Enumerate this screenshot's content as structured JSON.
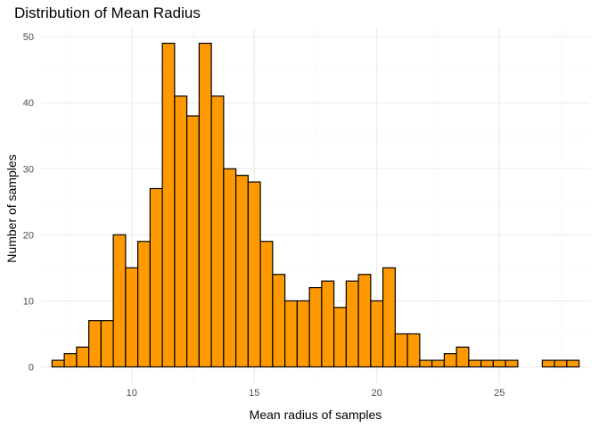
{
  "chart_data": {
    "type": "bar",
    "title": "Distribution of Mean Radius",
    "xlabel": "Mean radius of samples",
    "ylabel": "Number of samples",
    "bin_width": 0.5,
    "first_bin_center": 7.0,
    "values": [
      1,
      2,
      3,
      7,
      7,
      20,
      15,
      19,
      27,
      49,
      41,
      38,
      49,
      41,
      30,
      29,
      28,
      19,
      14,
      10,
      10,
      12,
      13,
      9,
      13,
      14,
      10,
      15,
      5,
      5,
      1,
      1,
      2,
      3,
      1,
      1,
      1,
      1,
      0,
      0,
      1,
      1,
      1
    ],
    "xlim": [
      6.3,
      28.7
    ],
    "ylim": [
      -2.5,
      51.5
    ],
    "x_ticks": [
      10,
      15,
      20,
      25
    ],
    "x_tick_labels": [
      "10",
      "15",
      "20",
      "25"
    ],
    "x_minor_ticks": [
      7.5,
      12.5,
      17.5,
      22.5,
      27.5
    ],
    "y_ticks": [
      0,
      10,
      20,
      30,
      40,
      50
    ],
    "y_tick_labels": [
      "0",
      "10",
      "20",
      "30",
      "40",
      "50"
    ],
    "fill_color": "#ff9900",
    "outline_color": "#000000",
    "grid": true,
    "legend": "none"
  }
}
